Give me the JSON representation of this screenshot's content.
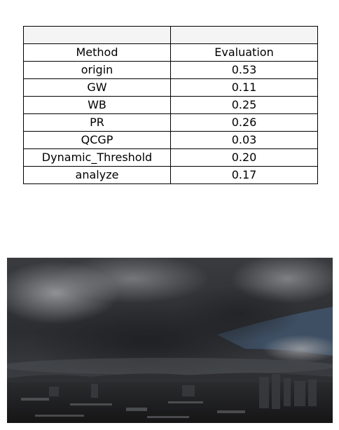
{
  "chart_data": {
    "type": "table",
    "header": [
      "",
      ""
    ],
    "columns": [
      "Method",
      "Evaluation"
    ],
    "rows": [
      [
        "origin",
        "0.53"
      ],
      [
        "GW",
        "0.11"
      ],
      [
        "WB",
        "0.25"
      ],
      [
        "PR",
        "0.26"
      ],
      [
        "QCGP",
        "0.03"
      ],
      [
        "Dynamic_Threshold",
        "0.20"
      ],
      [
        "analyze",
        "0.17"
      ]
    ]
  },
  "photo": {
    "subject": "storm-clouds-over-city",
    "colors": {
      "sky_dark": "#2c2d30",
      "cloud_light": "#8a8c90",
      "sky_blue": "#3e4f63",
      "city_dark": "#1c1c1e"
    }
  }
}
